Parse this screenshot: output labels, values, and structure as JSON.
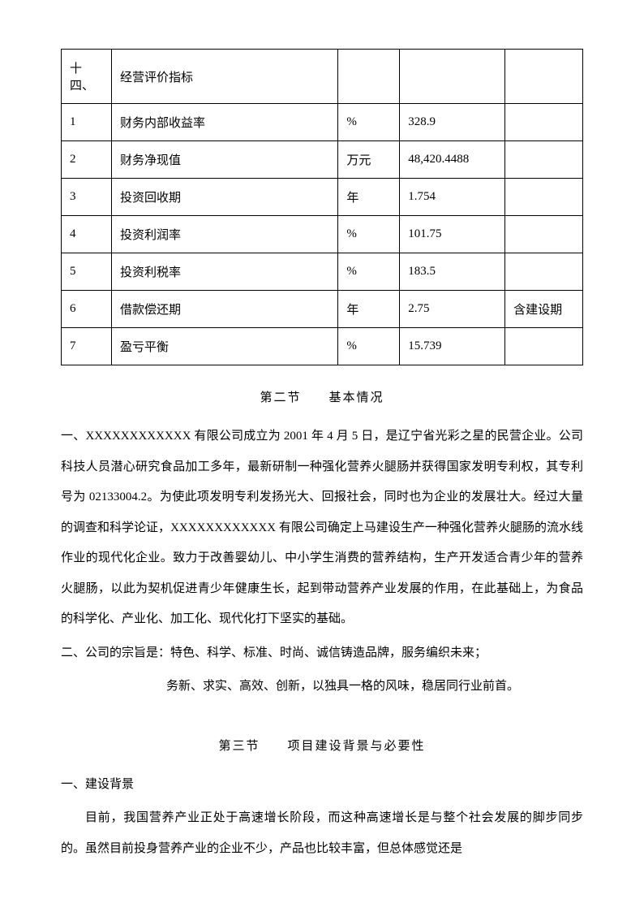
{
  "table": {
    "rows": [
      {
        "c1": "十四、",
        "c2": "经营评价指标",
        "c3": "",
        "c4": "",
        "c5": ""
      },
      {
        "c1": "1",
        "c2": "财务内部收益率",
        "c3": "%",
        "c4": "328.9",
        "c5": ""
      },
      {
        "c1": "2",
        "c2": "财务净现值",
        "c3": "万元",
        "c4": "48,420.4488",
        "c5": ""
      },
      {
        "c1": "3",
        "c2": "投资回收期",
        "c3": "年",
        "c4": "1.754",
        "c5": ""
      },
      {
        "c1": "4",
        "c2": "投资利润率",
        "c3": "%",
        "c4": "101.75",
        "c5": ""
      },
      {
        "c1": "5",
        "c2": "投资利税率",
        "c3": "%",
        "c4": "183.5",
        "c5": ""
      },
      {
        "c1": "6",
        "c2": "借款偿还期",
        "c3": "年",
        "c4": "2.75",
        "c5": "含建设期"
      },
      {
        "c1": "7",
        "c2": "盈亏平衡",
        "c3": "%",
        "c4": "15.739",
        "c5": ""
      }
    ]
  },
  "section2_title": "第二节　　基本情况",
  "para1": "一、XXXXXXXXXXXX 有限公司成立为 2001 年 4 月 5 日，是辽宁省光彩之星的民营企业。公司科技人员潜心研究食品加工多年，最新研制一种强化营养火腿肠并获得国家发明专利权，其专利号为 02133004.2。为使此项发明专利发扬光大、回报社会，同时也为企业的发展壮大。经过大量的调查和科学论证，XXXXXXXXXXXX 有限公司确定上马建设生产一种强化营养火腿肠的流水线作业的现代化企业。致力于改善婴幼儿、中小学生消费的营养结构，生产开发适合青少年的营养火腿肠，以此为契机促进青少年健康生长，起到带动营养产业发展的作用，在此基础上，为食品的科学化、产业化、加工化、现代化打下坚实的基础。",
  "para2_line1": "二、公司的宗旨是：特色、科学、标准、时尚、诚信铸造品牌，服务编织未来；",
  "para2_line2": "务新、求实、高效、创新，以独具一格的风味，稳居同行业前首。",
  "section3_title": "第三节　　项目建设背景与必要性",
  "para3_heading": "一、建设背景",
  "para4": "目前，我国营养产业正处于高速增长阶段，而这种高速增长是与整个社会发展的脚步同步的。虽然目前投身营养产业的企业不少，产品也比较丰富，但总体感觉还是"
}
